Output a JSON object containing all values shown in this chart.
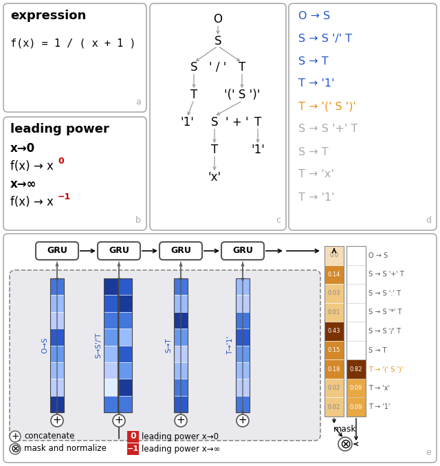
{
  "colors": {
    "blue": "#2255cc",
    "orange": "#e8921a",
    "gray": "#aaaaaa",
    "red": "#cc0000",
    "dark_orange": "#7a3500",
    "light_orange": "#f5d49a",
    "mid_orange": "#d4882a",
    "very_light_orange": "#f5e8cc"
  },
  "prob_values": [
    0.0,
    0.14,
    0.03,
    0.01,
    0.43,
    0.15,
    0.18,
    0.02,
    0.02
  ],
  "prob_values2": [
    0.0,
    0.0,
    0.0,
    0.0,
    0.0,
    0.0,
    0.82,
    0.09,
    0.09
  ],
  "rule_labels_right": [
    "O → S",
    "S → S '+' T",
    "S → S ':' T",
    "S → S '*' T",
    "S → S '/' T",
    "S → T",
    "T → '(' S ')'",
    "T → 'x'",
    "T → '1'"
  ]
}
